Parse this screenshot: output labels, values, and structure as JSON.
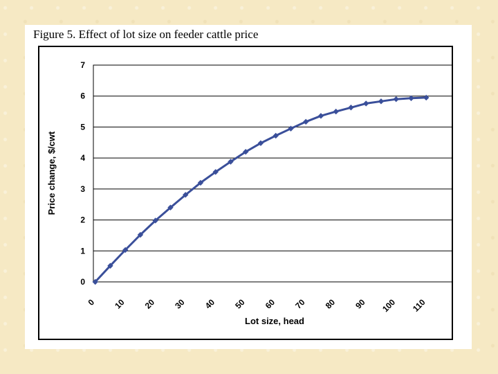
{
  "figure": {
    "title": "Figure 5. Effect of lot size on feeder cattle price"
  },
  "colors": {
    "series": "#3a4f9a",
    "grid": "#000000",
    "background": "#ffffff"
  },
  "chart_data": {
    "type": "line",
    "title": "Figure 5. Effect of lot size on feeder cattle price",
    "xlabel": "Lot size, head",
    "ylabel": "Price change, $/cwt",
    "xlim": [
      0,
      115
    ],
    "ylim": [
      0,
      7
    ],
    "xticks": [
      0,
      10,
      20,
      30,
      40,
      50,
      60,
      70,
      80,
      90,
      100,
      110
    ],
    "yticks": [
      0,
      1,
      2,
      3,
      4,
      5,
      6,
      7
    ],
    "grid": "horizontal",
    "legend": "none",
    "markers": "diamond",
    "series": [
      {
        "x": [
          2,
          7,
          12,
          17,
          22,
          27,
          32,
          37,
          42,
          47,
          52,
          57,
          62,
          67,
          72,
          77,
          82,
          87,
          92,
          97,
          102,
          107,
          112
        ],
        "values": [
          0,
          0.52,
          1.03,
          1.52,
          1.98,
          2.4,
          2.81,
          3.2,
          3.55,
          3.88,
          4.2,
          4.48,
          4.72,
          4.95,
          5.17,
          5.36,
          5.5,
          5.63,
          5.76,
          5.83,
          5.9,
          5.93,
          5.95
        ]
      }
    ]
  }
}
